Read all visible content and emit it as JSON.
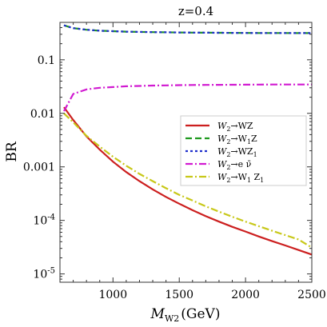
{
  "chart_data": {
    "type": "line",
    "title": "z=0.4",
    "xlabel": "M",
    "xlabel_sub": "W2",
    "xlabel_unit": "(GeV)",
    "ylabel": "BR",
    "xlim": [
      600,
      2500
    ],
    "ylim": [
      7e-06,
      0.5
    ],
    "yscale": "log",
    "grid": false,
    "legend_position": "center-right",
    "x_ticks": [
      1000,
      1500,
      2000,
      2500
    ],
    "x_tick_labels": [
      "1000",
      "1500",
      "2000",
      "2500"
    ],
    "y_ticks": [
      0.1,
      0.01,
      0.001,
      0.0001,
      1e-05
    ],
    "y_tick_labels": [
      {
        "base": "0.1",
        "exp": ""
      },
      {
        "base": "0.01",
        "exp": ""
      },
      {
        "base": "0.001",
        "exp": ""
      },
      {
        "base": "10",
        "exp": "-4"
      },
      {
        "base": "10",
        "exp": "-5"
      }
    ],
    "x": [
      630,
      700,
      800,
      900,
      1000,
      1100,
      1200,
      1300,
      1400,
      1500,
      1600,
      1700,
      1800,
      1900,
      2000,
      2100,
      2200,
      2300,
      2400,
      2500
    ],
    "series": [
      {
        "name": "W2→WZ",
        "legend": {
          "base": "W",
          "sub": "2",
          "rest": [
            {
              "t": "→WZ"
            }
          ]
        },
        "color": "#cc1f1f",
        "dash": "solid",
        "values": [
          0.013,
          0.0075,
          0.0037,
          0.0021,
          0.00125,
          0.0008,
          0.00054,
          0.00038,
          0.000275,
          0.000205,
          0.000155,
          0.00012,
          9.5e-05,
          7.6e-05,
          6.2e-05,
          5e-05,
          4.1e-05,
          3.4e-05,
          2.8e-05,
          2.3e-05
        ]
      },
      {
        "name": "W2→W1Z",
        "legend": {
          "base": "W",
          "sub": "2",
          "rest": [
            {
              "t": "→W"
            },
            {
              "sub": "1"
            },
            {
              "t": "Z"
            }
          ]
        },
        "color": "#1f9a1f",
        "dash": "dashed",
        "values": [
          0.44,
          0.39,
          0.365,
          0.35,
          0.342,
          0.336,
          0.332,
          0.329,
          0.326,
          0.324,
          0.322,
          0.321,
          0.32,
          0.319,
          0.318,
          0.317,
          0.316,
          0.316,
          0.315,
          0.315
        ]
      },
      {
        "name": "W2→WZ1",
        "legend": {
          "base": "W",
          "sub": "2",
          "rest": [
            {
              "t": "→WZ"
            },
            {
              "sub": "1"
            }
          ]
        },
        "color": "#1f2fcc",
        "dash": "dotted",
        "values": [
          0.44,
          0.39,
          0.365,
          0.35,
          0.342,
          0.336,
          0.332,
          0.329,
          0.326,
          0.324,
          0.322,
          0.321,
          0.32,
          0.319,
          0.318,
          0.317,
          0.316,
          0.316,
          0.315,
          0.315
        ]
      },
      {
        "name": "W2→eν̄",
        "legend": {
          "base": "W",
          "sub": "2",
          "rest": [
            {
              "t": "→e "
            },
            {
              "t": "ν̄"
            }
          ]
        },
        "color": "#d11ad1",
        "dash": "dashdot",
        "values": [
          0.011,
          0.023,
          0.028,
          0.03,
          0.031,
          0.032,
          0.0325,
          0.033,
          0.0333,
          0.0336,
          0.0338,
          0.034,
          0.0341,
          0.0342,
          0.0343,
          0.0344,
          0.0345,
          0.0345,
          0.0346,
          0.0346
        ]
      },
      {
        "name": "W2→W1Z1",
        "legend": {
          "base": "W",
          "sub": "2",
          "rest": [
            {
              "t": "→W"
            },
            {
              "sub": "1"
            },
            {
              "t": " Z"
            },
            {
              "sub": "1"
            }
          ]
        },
        "color": "#c8c81a",
        "dash": "dashdot",
        "values": [
          0.01,
          0.0068,
          0.0038,
          0.0024,
          0.00155,
          0.00105,
          0.00074,
          0.00054,
          0.0004,
          0.0003,
          0.000235,
          0.000183,
          0.000146,
          0.000117,
          9.5e-05,
          7.8e-05,
          6.4e-05,
          5.3e-05,
          4.4e-05,
          3.1e-05
        ]
      }
    ]
  }
}
